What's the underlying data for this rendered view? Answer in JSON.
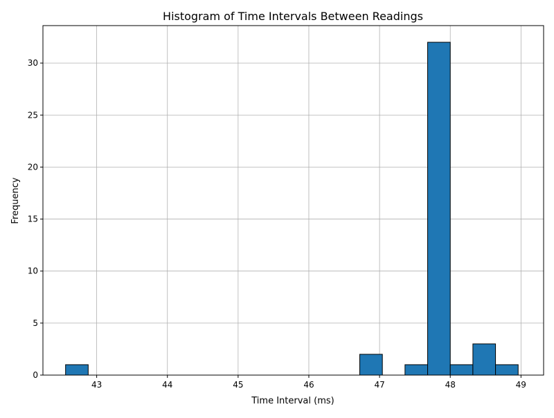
{
  "chart_data": {
    "type": "bar",
    "title": "Histogram of Time Intervals Between Readings",
    "xlabel": "Time Interval (ms)",
    "ylabel": "Frequency",
    "xlim": [
      42.24,
      49.32
    ],
    "ylim": [
      0,
      33.6
    ],
    "xticks": [
      43,
      44,
      45,
      46,
      47,
      48,
      49
    ],
    "yticks": [
      0,
      5,
      10,
      15,
      20,
      25,
      30
    ],
    "grid": true,
    "bar_color": "#1f77b4",
    "edge_color": "#000000",
    "bins": [
      {
        "x0": 42.56,
        "x1": 42.88,
        "count": 1
      },
      {
        "x0": 42.88,
        "x1": 43.2,
        "count": 0
      },
      {
        "x0": 43.2,
        "x1": 43.52,
        "count": 0
      },
      {
        "x0": 43.52,
        "x1": 43.84,
        "count": 0
      },
      {
        "x0": 43.84,
        "x1": 44.16,
        "count": 0
      },
      {
        "x0": 44.16,
        "x1": 44.48,
        "count": 0
      },
      {
        "x0": 44.48,
        "x1": 44.8,
        "count": 0
      },
      {
        "x0": 44.8,
        "x1": 45.12,
        "count": 0
      },
      {
        "x0": 45.12,
        "x1": 45.44,
        "count": 0
      },
      {
        "x0": 45.44,
        "x1": 45.76,
        "count": 0
      },
      {
        "x0": 45.76,
        "x1": 46.08,
        "count": 0
      },
      {
        "x0": 46.08,
        "x1": 46.4,
        "count": 0
      },
      {
        "x0": 46.4,
        "x1": 46.72,
        "count": 0
      },
      {
        "x0": 46.72,
        "x1": 47.04,
        "count": 2
      },
      {
        "x0": 47.04,
        "x1": 47.36,
        "count": 0
      },
      {
        "x0": 47.36,
        "x1": 47.68,
        "count": 1
      },
      {
        "x0": 47.68,
        "x1": 48.0,
        "count": 32
      },
      {
        "x0": 48.0,
        "x1": 48.32,
        "count": 1
      },
      {
        "x0": 48.32,
        "x1": 48.64,
        "count": 3
      },
      {
        "x0": 48.64,
        "x1": 48.96,
        "count": 1
      }
    ]
  }
}
